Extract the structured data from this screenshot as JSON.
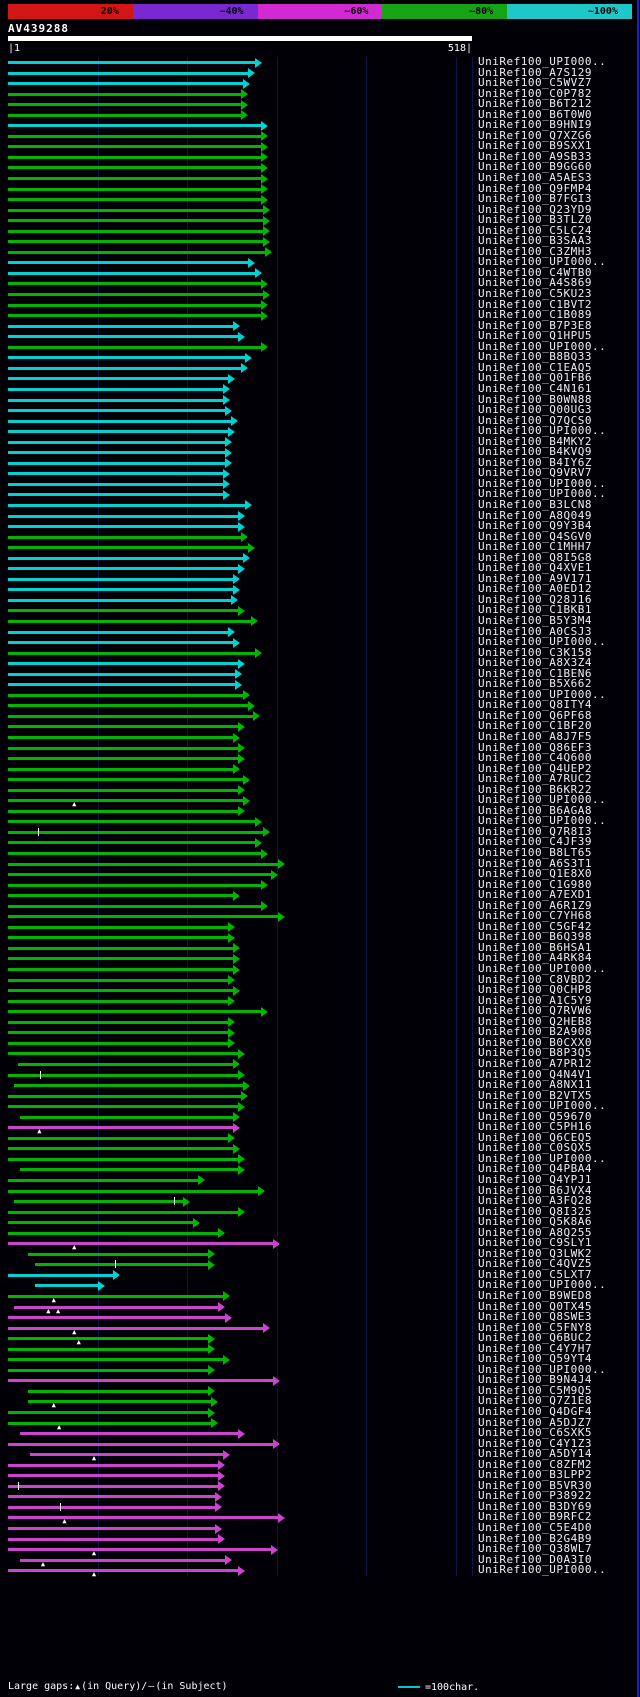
{
  "chart_data": {
    "type": "bar",
    "orientation": "horizontal",
    "title": "AV439288",
    "query": {
      "id": "AV439288",
      "length": 518,
      "start_label": "|1",
      "end_label": "518|"
    },
    "identity_scale": {
      "labels": [
        "20%",
        "~40%",
        "~60%",
        "~80%",
        "~100%"
      ],
      "colors": [
        "#d21616",
        "#7a28d2",
        "#d22ad2",
        "#16a416",
        "#1ec8c8"
      ]
    },
    "x_range": [
      0,
      518
    ],
    "gridline_every": 100,
    "grid_on": true,
    "color_map": {
      "cyan": "#00d2d2",
      "green": "#00b400",
      "magenta": "#cc44cc"
    },
    "rows": [
      {
        "l": "UniRef100_UPI000..",
        "c": "cyan",
        "s": 0,
        "e": 284
      },
      {
        "l": "UniRef100_A7S129",
        "c": "cyan",
        "s": 0,
        "e": 276
      },
      {
        "l": "UniRef100_C5WVZ7",
        "c": "cyan",
        "s": 0,
        "e": 270
      },
      {
        "l": "UniRef100_C0P782",
        "c": "green",
        "s": 0,
        "e": 268
      },
      {
        "l": "UniRef100_B6T212",
        "c": "green",
        "s": 0,
        "e": 268
      },
      {
        "l": "UniRef100_B6T0W0",
        "c": "green",
        "s": 0,
        "e": 268
      },
      {
        "l": "UniRef100_B9HNI9",
        "c": "cyan",
        "s": 0,
        "e": 290
      },
      {
        "l": "UniRef100_Q7XZG6",
        "c": "green",
        "s": 0,
        "e": 290
      },
      {
        "l": "UniRef100_B9SXX1",
        "c": "green",
        "s": 0,
        "e": 290
      },
      {
        "l": "UniRef100_A9SB33",
        "c": "green",
        "s": 0,
        "e": 290
      },
      {
        "l": "UniRef100_B9GG60",
        "c": "green",
        "s": 0,
        "e": 290
      },
      {
        "l": "UniRef100_A5AES3",
        "c": "green",
        "s": 0,
        "e": 290
      },
      {
        "l": "UniRef100_Q9FMP4",
        "c": "green",
        "s": 0,
        "e": 290
      },
      {
        "l": "UniRef100_B7FGI3",
        "c": "green",
        "s": 0,
        "e": 290
      },
      {
        "l": "UniRef100_Q23YD9",
        "c": "green",
        "s": 0,
        "e": 292
      },
      {
        "l": "UniRef100_B3TLZ0",
        "c": "green",
        "s": 0,
        "e": 292
      },
      {
        "l": "UniRef100_C5LC24",
        "c": "green",
        "s": 0,
        "e": 292
      },
      {
        "l": "UniRef100_B3SAA3",
        "c": "green",
        "s": 0,
        "e": 292
      },
      {
        "l": "UniRef100_C3ZMH3",
        "c": "green",
        "s": 0,
        "e": 295
      },
      {
        "l": "UniRef100_UPI000..",
        "c": "cyan",
        "s": 0,
        "e": 276
      },
      {
        "l": "UniRef100_C4WTB0",
        "c": "cyan",
        "s": 0,
        "e": 284
      },
      {
        "l": "UniRef100_A4S869",
        "c": "green",
        "s": 0,
        "e": 290
      },
      {
        "l": "UniRef100_C5KU23",
        "c": "green",
        "s": 0,
        "e": 292
      },
      {
        "l": "UniRef100_C1BVT2",
        "c": "green",
        "s": 0,
        "e": 290
      },
      {
        "l": "UniRef100_C1B089",
        "c": "green",
        "s": 0,
        "e": 290
      },
      {
        "l": "UniRef100_B7P3E8",
        "c": "cyan",
        "s": 0,
        "e": 259
      },
      {
        "l": "UniRef100_Q1HPU5",
        "c": "cyan",
        "s": 0,
        "e": 265
      },
      {
        "l": "UniRef100_UPI000..",
        "c": "green",
        "s": 0,
        "e": 290
      },
      {
        "l": "UniRef100_B8BQ33",
        "c": "cyan",
        "s": 0,
        "e": 272
      },
      {
        "l": "UniRef100_C1EAQ5",
        "c": "cyan",
        "s": 0,
        "e": 268
      },
      {
        "l": "UniRef100_Q01FB6",
        "c": "cyan",
        "s": 0,
        "e": 253
      },
      {
        "l": "UniRef100_C4N161",
        "c": "cyan",
        "s": 0,
        "e": 248
      },
      {
        "l": "UniRef100_B0WN88",
        "c": "cyan",
        "s": 0,
        "e": 248
      },
      {
        "l": "UniRef100_Q00UG3",
        "c": "cyan",
        "s": 0,
        "e": 250
      },
      {
        "l": "UniRef100_Q7QCS0",
        "c": "cyan",
        "s": 0,
        "e": 257
      },
      {
        "l": "UniRef100_UPI000..",
        "c": "cyan",
        "s": 0,
        "e": 253
      },
      {
        "l": "UniRef100_B4MKY2",
        "c": "cyan",
        "s": 0,
        "e": 250
      },
      {
        "l": "UniRef100_B4KVQ9",
        "c": "cyan",
        "s": 0,
        "e": 250
      },
      {
        "l": "UniRef100_B4IY6Z",
        "c": "cyan",
        "s": 0,
        "e": 250
      },
      {
        "l": "UniRef100_Q9VRV7",
        "c": "cyan",
        "s": 0,
        "e": 248
      },
      {
        "l": "UniRef100_UPI000..",
        "c": "cyan",
        "s": 0,
        "e": 248
      },
      {
        "l": "UniRef100_UPI000..",
        "c": "cyan",
        "s": 0,
        "e": 248
      },
      {
        "l": "UniRef100_B3LCN8",
        "c": "cyan",
        "s": 0,
        "e": 272
      },
      {
        "l": "UniRef100_A8Q049",
        "c": "cyan",
        "s": 0,
        "e": 265
      },
      {
        "l": "UniRef100_Q9Y3B4",
        "c": "cyan",
        "s": 0,
        "e": 265
      },
      {
        "l": "UniRef100_Q4SGV0",
        "c": "green",
        "s": 0,
        "e": 268
      },
      {
        "l": "UniRef100_C1MHH7",
        "c": "green",
        "s": 0,
        "e": 276
      },
      {
        "l": "UniRef100_Q8I5G8",
        "c": "cyan",
        "s": 0,
        "e": 270
      },
      {
        "l": "UniRef100_Q4XVE1",
        "c": "cyan",
        "s": 0,
        "e": 265
      },
      {
        "l": "UniRef100_A9V171",
        "c": "cyan",
        "s": 0,
        "e": 259
      },
      {
        "l": "UniRef100_A0ED12",
        "c": "cyan",
        "s": 0,
        "e": 259
      },
      {
        "l": "UniRef100_Q28J16",
        "c": "cyan",
        "s": 0,
        "e": 257
      },
      {
        "l": "UniRef100_C1BKB1",
        "c": "green",
        "s": 0,
        "e": 265
      },
      {
        "l": "UniRef100_B5Y3M4",
        "c": "green",
        "s": 0,
        "e": 279
      },
      {
        "l": "UniRef100_A0CSJ3",
        "c": "cyan",
        "s": 0,
        "e": 253
      },
      {
        "l": "UniRef100_UPI000..",
        "c": "cyan",
        "s": 0,
        "e": 259
      },
      {
        "l": "UniRef100_C3K158",
        "c": "green",
        "s": 0,
        "e": 284
      },
      {
        "l": "UniRef100_A8X3Z4",
        "c": "cyan",
        "s": 0,
        "e": 265
      },
      {
        "l": "UniRef100_C1BEN6",
        "c": "cyan",
        "s": 0,
        "e": 261
      },
      {
        "l": "UniRef100_B5X662",
        "c": "cyan",
        "s": 0,
        "e": 261
      },
      {
        "l": "UniRef100_UPI000..",
        "c": "green",
        "s": 0,
        "e": 270
      },
      {
        "l": "UniRef100_Q8ITY4",
        "c": "green",
        "s": 0,
        "e": 276
      },
      {
        "l": "UniRef100_Q6PF68",
        "c": "green",
        "s": 0,
        "e": 281
      },
      {
        "l": "UniRef100_C1BF20",
        "c": "green",
        "s": 0,
        "e": 265
      },
      {
        "l": "UniRef100_A8J7F5",
        "c": "green",
        "s": 0,
        "e": 259
      },
      {
        "l": "UniRef100_Q86EF3",
        "c": "green",
        "s": 0,
        "e": 265
      },
      {
        "l": "UniRef100_C4Q600",
        "c": "green",
        "s": 0,
        "e": 265
      },
      {
        "l": "UniRef100_Q4UEP2",
        "c": "green",
        "s": 0,
        "e": 259
      },
      {
        "l": "UniRef100_A7RUC2",
        "c": "green",
        "s": 0,
        "e": 270
      },
      {
        "l": "UniRef100_B6KR22",
        "c": "green",
        "s": 0,
        "e": 265
      },
      {
        "l": "UniRef100_UPI000..",
        "c": "green",
        "s": 0,
        "e": 270,
        "qg": [
          75
        ]
      },
      {
        "l": "UniRef100_B6AGA8",
        "c": "green",
        "s": 0,
        "e": 265
      },
      {
        "l": "UniRef100_UPI000..",
        "c": "green",
        "s": 0,
        "e": 284
      },
      {
        "l": "UniRef100_Q7R8I3",
        "c": "green",
        "s": 0,
        "e": 292,
        "sg": [
          34
        ]
      },
      {
        "l": "UniRef100_C4JF39",
        "c": "green",
        "s": 0,
        "e": 284
      },
      {
        "l": "UniRef100_B8LT65",
        "c": "green",
        "s": 0,
        "e": 290
      },
      {
        "l": "UniRef100_A6S3T1",
        "c": "green",
        "s": 0,
        "e": 309
      },
      {
        "l": "UniRef100_Q1E8X0",
        "c": "green",
        "s": 0,
        "e": 301
      },
      {
        "l": "UniRef100_C1G980",
        "c": "green",
        "s": 0,
        "e": 290
      },
      {
        "l": "UniRef100_A7EXD1",
        "c": "green",
        "s": 0,
        "e": 259
      },
      {
        "l": "UniRef100_A6R1Z9",
        "c": "green",
        "s": 0,
        "e": 290
      },
      {
        "l": "UniRef100_C7YH68",
        "c": "green",
        "s": 0,
        "e": 309
      },
      {
        "l": "UniRef100_C5GF42",
        "c": "green",
        "s": 0,
        "e": 253
      },
      {
        "l": "UniRef100_B6Q398",
        "c": "green",
        "s": 0,
        "e": 253
      },
      {
        "l": "UniRef100_B6HSA1",
        "c": "green",
        "s": 0,
        "e": 259
      },
      {
        "l": "UniRef100_A4RK84",
        "c": "green",
        "s": 0,
        "e": 259
      },
      {
        "l": "UniRef100_UPI000..",
        "c": "green",
        "s": 0,
        "e": 259
      },
      {
        "l": "UniRef100_C8VBD2",
        "c": "green",
        "s": 0,
        "e": 253
      },
      {
        "l": "UniRef100_Q0CHP8",
        "c": "green",
        "s": 0,
        "e": 259
      },
      {
        "l": "UniRef100_A1C5Y9",
        "c": "green",
        "s": 0,
        "e": 253
      },
      {
        "l": "UniRef100_Q7RVW6",
        "c": "green",
        "s": 0,
        "e": 290
      },
      {
        "l": "UniRef100_Q2HEB8",
        "c": "green",
        "s": 0,
        "e": 253
      },
      {
        "l": "UniRef100_B2A908",
        "c": "green",
        "s": 0,
        "e": 253
      },
      {
        "l": "UniRef100_B0CXX0",
        "c": "green",
        "s": 0,
        "e": 253
      },
      {
        "l": "UniRef100_B8P3Q5",
        "c": "green",
        "s": 0,
        "e": 265
      },
      {
        "l": "UniRef100_A7PR12",
        "c": "green",
        "s": 11,
        "e": 259
      },
      {
        "l": "UniRef100_Q4N4V1",
        "c": "green",
        "s": 0,
        "e": 265,
        "sg": [
          36
        ]
      },
      {
        "l": "UniRef100_A8NX11",
        "c": "green",
        "s": 7,
        "e": 270
      },
      {
        "l": "UniRef100_B2VTX5",
        "c": "green",
        "s": 0,
        "e": 268
      },
      {
        "l": "UniRef100_UPI000..",
        "c": "green",
        "s": 0,
        "e": 265
      },
      {
        "l": "UniRef100_Q59670",
        "c": "green",
        "s": 13,
        "e": 259
      },
      {
        "l": "UniRef100_C5PH16",
        "c": "magenta",
        "s": 0,
        "e": 259,
        "qg": [
          36
        ]
      },
      {
        "l": "UniRef100_Q6CEQ5",
        "c": "green",
        "s": 0,
        "e": 253
      },
      {
        "l": "UniRef100_C0SQX5",
        "c": "green",
        "s": 0,
        "e": 259
      },
      {
        "l": "UniRef100_UPI000..",
        "c": "green",
        "s": 0,
        "e": 265
      },
      {
        "l": "UniRef100_Q4PBA4",
        "c": "green",
        "s": 13,
        "e": 265
      },
      {
        "l": "UniRef100_Q4YPJ1",
        "c": "green",
        "s": 0,
        "e": 220
      },
      {
        "l": "UniRef100_B6JVX4",
        "c": "green",
        "s": 0,
        "e": 287
      },
      {
        "l": "UniRef100_A3FQ28",
        "c": "green",
        "s": 7,
        "e": 203,
        "sg": [
          185
        ]
      },
      {
        "l": "UniRef100_Q8I325",
        "c": "green",
        "s": 0,
        "e": 265
      },
      {
        "l": "UniRef100_Q5K8A6",
        "c": "green",
        "s": 0,
        "e": 214
      },
      {
        "l": "UniRef100_A8Q255",
        "c": "green",
        "s": 0,
        "e": 242
      },
      {
        "l": "UniRef100_C9SLY1",
        "c": "magenta",
        "s": 0,
        "e": 304,
        "qg": [
          75
        ]
      },
      {
        "l": "UniRef100_Q3LWK2",
        "c": "green",
        "s": 22,
        "e": 231
      },
      {
        "l": "UniRef100_C4QVZ5",
        "c": "green",
        "s": 30,
        "e": 231,
        "sg": [
          120
        ]
      },
      {
        "l": "UniRef100_C5LXT7",
        "c": "cyan",
        "s": 0,
        "e": 125
      },
      {
        "l": "UniRef100_UPI000..",
        "c": "cyan",
        "s": 30,
        "e": 108
      },
      {
        "l": "UniRef100_B9WED8",
        "c": "green",
        "s": 0,
        "e": 248,
        "qg": [
          52
        ]
      },
      {
        "l": "UniRef100_Q0TX45",
        "c": "magenta",
        "s": 7,
        "e": 242,
        "qg": [
          46,
          57
        ]
      },
      {
        "l": "UniRef100_Q8SWE3",
        "c": "magenta",
        "s": 0,
        "e": 250
      },
      {
        "l": "UniRef100_C5FNY8",
        "c": "magenta",
        "s": 0,
        "e": 292,
        "qg": [
          75
        ]
      },
      {
        "l": "UniRef100_Q6BUC2",
        "c": "green",
        "s": 0,
        "e": 231,
        "qg": [
          80
        ]
      },
      {
        "l": "UniRef100_C4Y7H7",
        "c": "green",
        "s": 0,
        "e": 231
      },
      {
        "l": "UniRef100_Q59YT4",
        "c": "green",
        "s": 0,
        "e": 248
      },
      {
        "l": "UniRef100_UPI000..",
        "c": "green",
        "s": 0,
        "e": 231
      },
      {
        "l": "UniRef100_B9N4J4",
        "c": "magenta",
        "s": 0,
        "e": 304
      },
      {
        "l": "UniRef100_C5M9Q5",
        "c": "green",
        "s": 22,
        "e": 231
      },
      {
        "l": "UniRef100_Q7Z1E8",
        "c": "green",
        "s": 22,
        "e": 234,
        "qg": [
          52
        ]
      },
      {
        "l": "UniRef100_Q4DGF4",
        "c": "green",
        "s": 0,
        "e": 231
      },
      {
        "l": "UniRef100_A5DJZ7",
        "c": "green",
        "s": 0,
        "e": 234,
        "qg": [
          58
        ]
      },
      {
        "l": "UniRef100_C6SXK5",
        "c": "magenta",
        "s": 13,
        "e": 265
      },
      {
        "l": "UniRef100_C4Y1Z3",
        "c": "magenta",
        "s": 0,
        "e": 304
      },
      {
        "l": "UniRef100_A5DY14",
        "c": "magenta",
        "s": 25,
        "e": 248,
        "qg": [
          97
        ]
      },
      {
        "l": "UniRef100_C8ZFM2",
        "c": "magenta",
        "s": 0,
        "e": 242
      },
      {
        "l": "UniRef100_B3LPP2",
        "c": "magenta",
        "s": 0,
        "e": 242
      },
      {
        "l": "UniRef100_B5VR30",
        "c": "magenta",
        "s": 0,
        "e": 242,
        "sg": [
          11
        ]
      },
      {
        "l": "UniRef100_P38922",
        "c": "magenta",
        "s": 0,
        "e": 239
      },
      {
        "l": "UniRef100_B3DY69",
        "c": "magenta",
        "s": 0,
        "e": 239,
        "sg": [
          58
        ]
      },
      {
        "l": "UniRef100_B9RFC2",
        "c": "magenta",
        "s": 0,
        "e": 309,
        "qg": [
          64
        ]
      },
      {
        "l": "UniRef100_C5E4D0",
        "c": "magenta",
        "s": 0,
        "e": 239
      },
      {
        "l": "UniRef100_B2G4B9",
        "c": "magenta",
        "s": 0,
        "e": 242
      },
      {
        "l": "UniRef100_Q38WL7",
        "c": "magenta",
        "s": 0,
        "e": 301,
        "qg": [
          97
        ]
      },
      {
        "l": "UniRef100_D0A3I0",
        "c": "magenta",
        "s": 13,
        "e": 250,
        "qg": [
          40
        ]
      },
      {
        "l": "UniRef100_UPI000..",
        "c": "magenta",
        "s": 0,
        "e": 265,
        "qg": [
          97
        ]
      }
    ]
  },
  "footer": {
    "legend_prefix": "Large gaps:",
    "query_gap_symbol": "▲",
    "legend_query": "(in Query)/",
    "subject_gap_symbol": "—",
    "legend_subject": "(in Subject)",
    "ruler_label": "=100char."
  }
}
